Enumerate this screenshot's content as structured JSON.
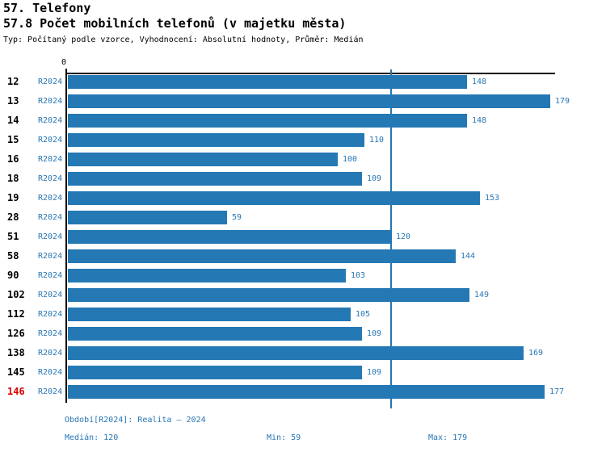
{
  "header": {
    "title_line1": "57. Telefony",
    "title_line2": "57.8 Počet mobilních telefonů (v majetku města)",
    "subtitle": "Typ: Počítaný podle vzorce, Vyhodnocení: Absolutní hodnoty, Průměr: Medián"
  },
  "chart_data": {
    "type": "bar",
    "orientation": "horizontal",
    "title": "57.8 Počet mobilních telefonů (v majetku města)",
    "categories": [
      "12",
      "13",
      "14",
      "15",
      "16",
      "18",
      "19",
      "28",
      "51",
      "58",
      "90",
      "102",
      "112",
      "126",
      "138",
      "145",
      "146"
    ],
    "series": [
      {
        "name": "R2024",
        "values": [
          148,
          179,
          148,
          110,
          100,
          109,
          153,
          59,
          120,
          144,
          103,
          149,
          105,
          109,
          169,
          109,
          177
        ]
      }
    ],
    "value_labels_shown": true,
    "xlim": [
      0,
      179
    ],
    "zero_tick_label": "0",
    "median_reference_line": 120,
    "highlighted_category": "146",
    "legend_position": "none",
    "grid": false,
    "colors": {
      "bar": "#2478B4",
      "blue_text": "#2876B4",
      "highlight_red": "#DD0000",
      "axis": "#000000"
    }
  },
  "footer": {
    "period": "Období[R2024]: Realita – 2024",
    "median": "Medián: 120",
    "min": "Min: 59",
    "max": "Max: 179"
  }
}
